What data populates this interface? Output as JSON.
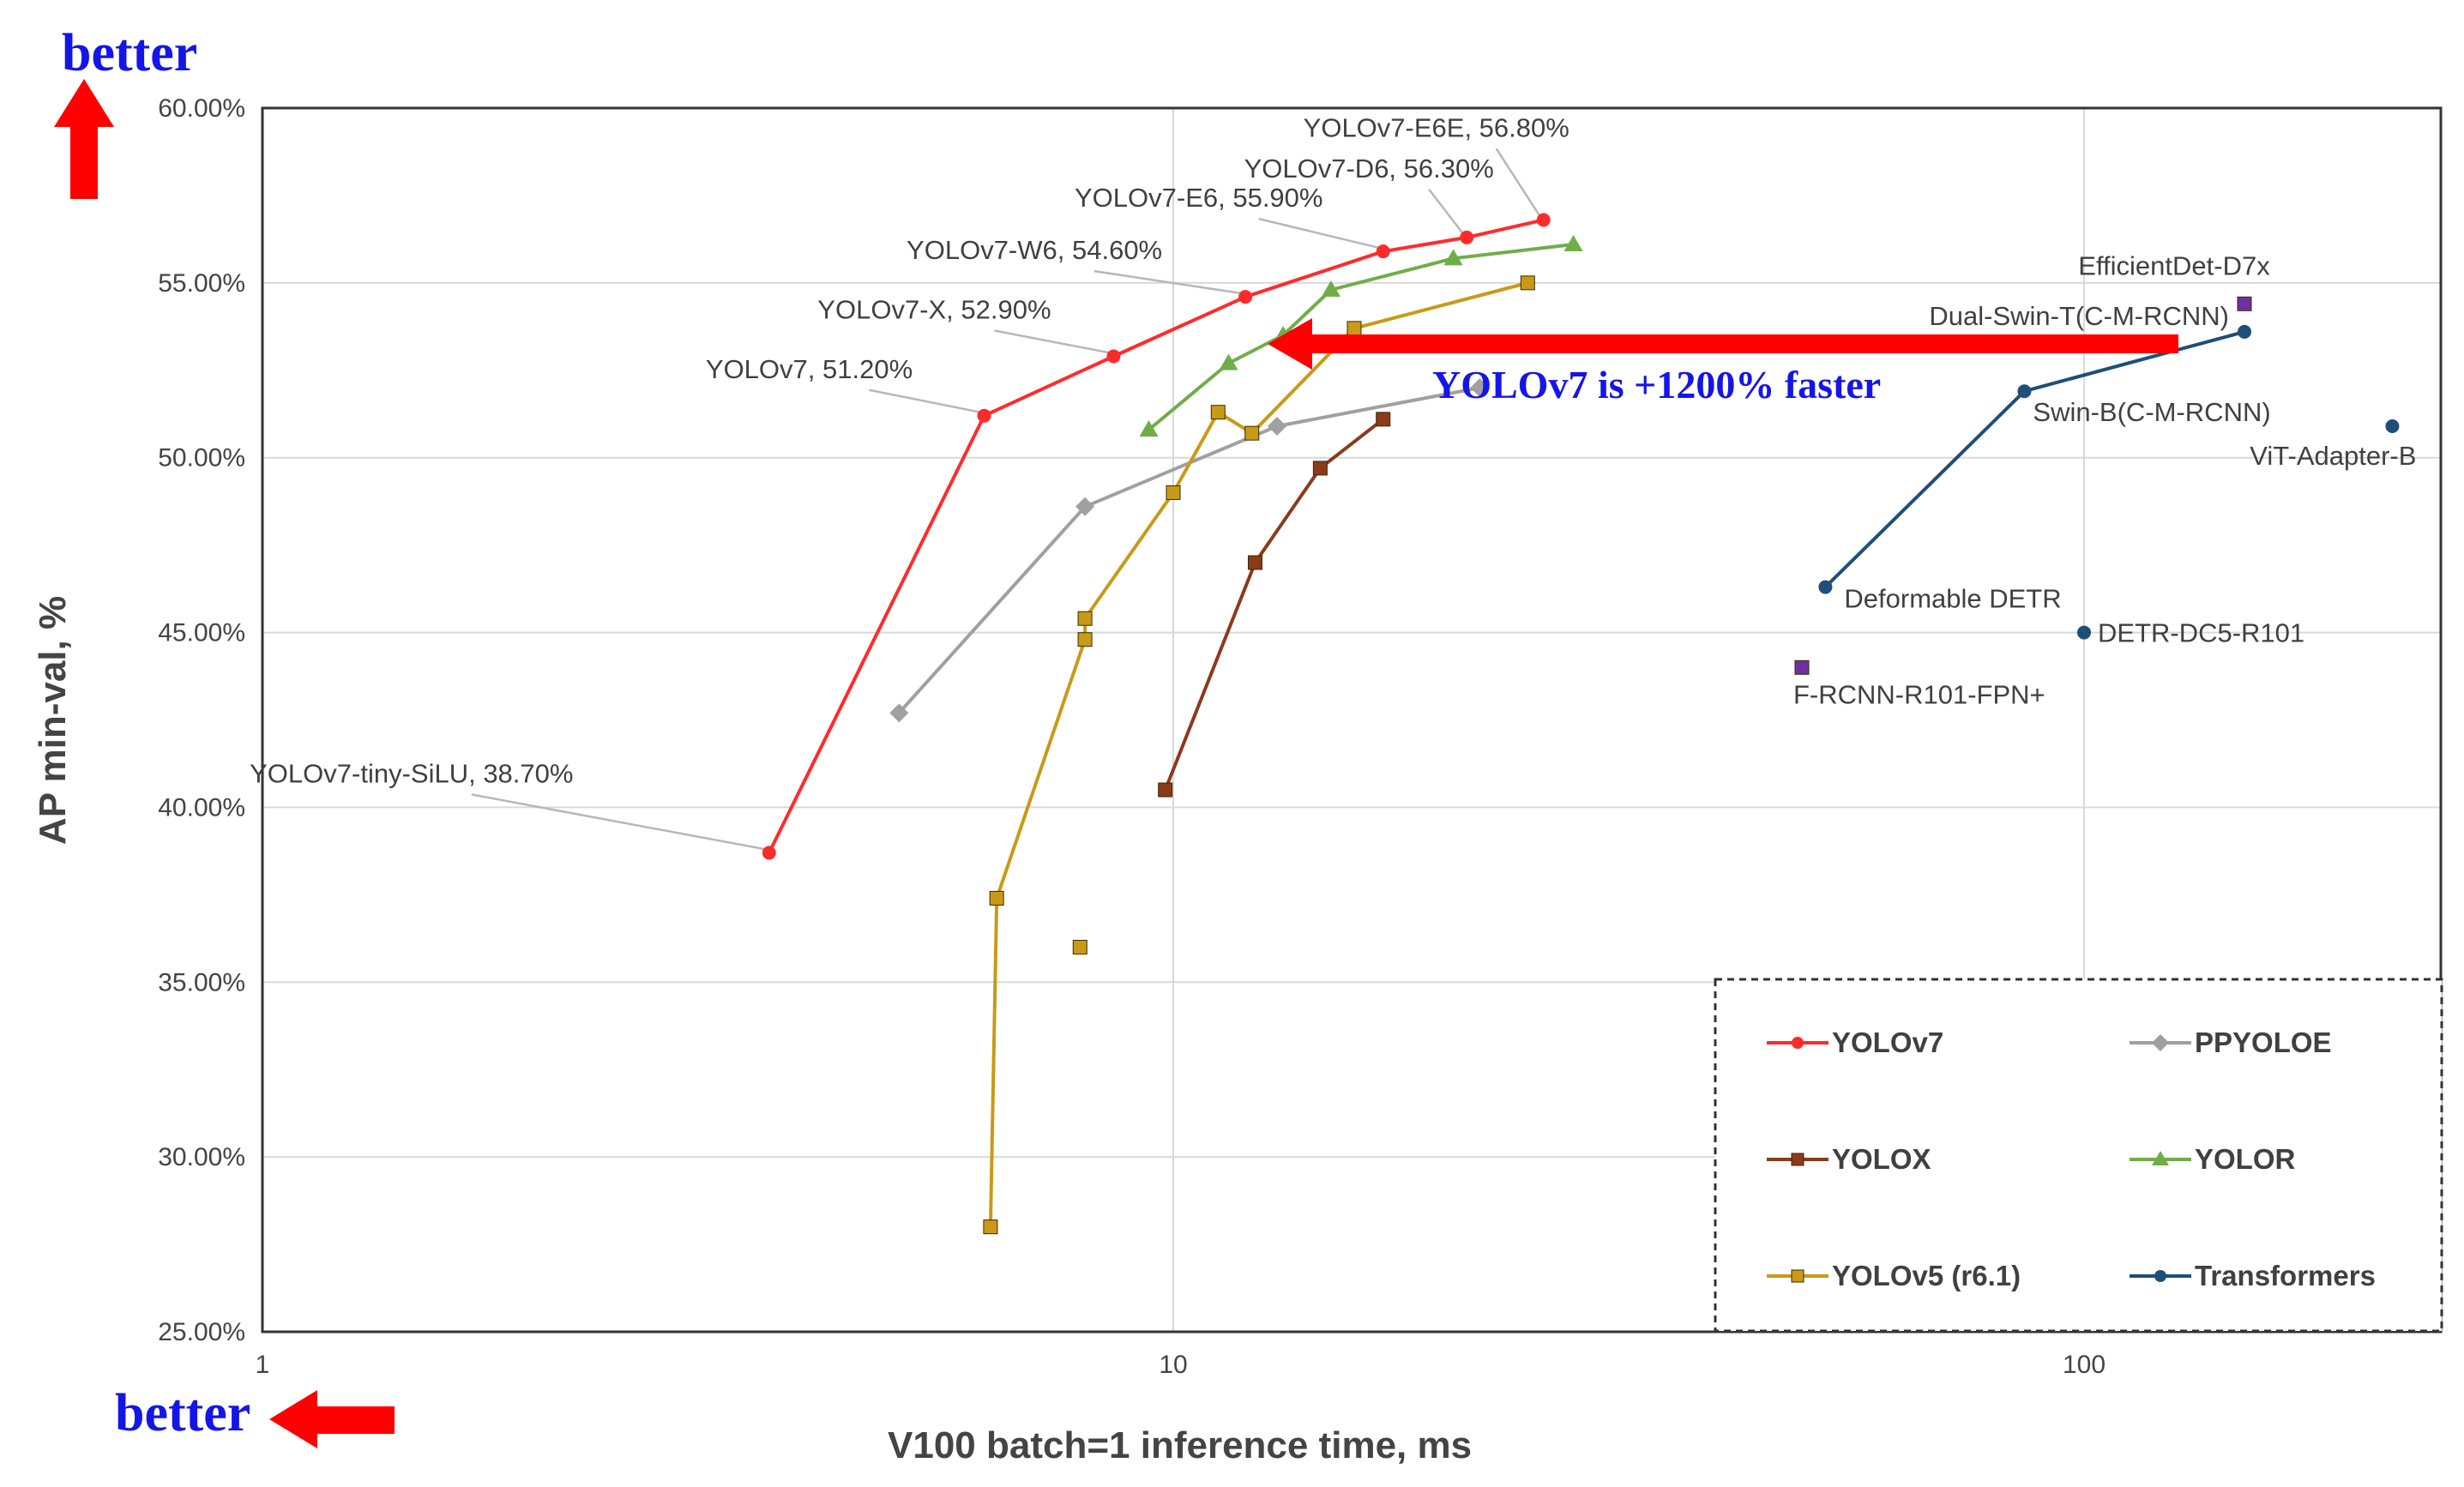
{
  "chart_data": {
    "type": "scatter",
    "title": "",
    "xlabel": "V100 batch=1 inference time, ms",
    "ylabel": "AP min-val, %",
    "xscale": "log",
    "xlim": [
      1,
      230
    ],
    "ylim": [
      25,
      60
    ],
    "xticks": [
      "1",
      "10",
      "100"
    ],
    "yticks": [
      "25.00%",
      "30.00%",
      "35.00%",
      "40.00%",
      "45.00%",
      "50.00%",
      "55.00%",
      "60.00%"
    ],
    "grid": true,
    "legend_position": "bottom-right",
    "better_y": "better",
    "better_x": "better",
    "speedup_note": "YOLOv7 is +1200% faster",
    "series": [
      {
        "name": "YOLOv7",
        "color": "#ff2b2b",
        "marker": "circle",
        "lines": true,
        "x": [
          3.6,
          6.2,
          8.6,
          12.0,
          17.0,
          21.0,
          25.5
        ],
        "y": [
          38.7,
          51.2,
          52.9,
          54.6,
          55.9,
          56.3,
          56.8
        ]
      },
      {
        "name": "PPYOLOE",
        "color": "#a0a0a0",
        "marker": "diamond",
        "lines": true,
        "x": [
          5.0,
          8.0,
          13.0,
          21.7
        ],
        "y": [
          42.7,
          48.6,
          50.9,
          52.0
        ]
      },
      {
        "name": "YOLOX",
        "color": "#8b3a1a",
        "marker": "square",
        "lines": true,
        "x": [
          9.8,
          12.3,
          14.5,
          17.0
        ],
        "y": [
          40.5,
          47.0,
          49.7,
          51.1
        ]
      },
      {
        "name": "YOLOR",
        "color": "#70ad47",
        "marker": "triangle",
        "lines": true,
        "x": [
          9.4,
          11.5,
          13.2,
          14.9,
          20.3,
          27.5
        ],
        "y": [
          50.8,
          52.7,
          53.5,
          54.8,
          55.7,
          56.1
        ]
      },
      {
        "name": "YOLOv5 (r6.1)",
        "color": "#c99a17",
        "marker": "square",
        "lines": true,
        "x": [
          6.3,
          6.4,
          8.0,
          8.0,
          10.0,
          11.2,
          12.2,
          15.8,
          24.5
        ],
        "y": [
          28.0,
          37.4,
          44.8,
          45.4,
          49.0,
          51.3,
          50.7,
          53.7,
          55.0
        ]
      },
      {
        "name": "YOLOv5 (r6.1)",
        "color": "#c99a17",
        "marker": "square",
        "lines": false,
        "x": [
          7.9
        ],
        "y": [
          36.0
        ]
      },
      {
        "name": "Transformers",
        "color": "#1f4e79",
        "marker": "circle",
        "lines": true,
        "x": [
          52.0,
          86.0,
          150.0
        ],
        "y": [
          46.3,
          51.9,
          53.6
        ]
      },
      {
        "name": "Transformers",
        "color": "#1f4e79",
        "marker": "circle",
        "lines": false,
        "x": [
          100.0,
          218.0
        ],
        "y": [
          45.0,
          50.9
        ]
      },
      {
        "name": "",
        "color": "#7030a0",
        "marker": "square",
        "lines": false,
        "x": [
          49.0,
          150.0
        ],
        "y": [
          44.0,
          54.4
        ]
      }
    ],
    "annotations": [
      {
        "text": "YOLOv7-E6E, 56.80%",
        "x": 25.5,
        "y": 56.8
      },
      {
        "text": "YOLOv7-D6, 56.30%",
        "x": 21.0,
        "y": 56.3
      },
      {
        "text": "YOLOv7-E6, 55.90%",
        "x": 17.0,
        "y": 55.9
      },
      {
        "text": "YOLOv7-W6, 54.60%",
        "x": 12.0,
        "y": 54.6
      },
      {
        "text": "YOLOv7-X, 52.90%",
        "x": 8.6,
        "y": 52.9
      },
      {
        "text": "YOLOv7, 51.20%",
        "x": 6.2,
        "y": 51.2
      },
      {
        "text": "YOLOv7-tiny-SiLU, 38.70%",
        "x": 3.6,
        "y": 38.7
      },
      {
        "text": "EfficientDet-D7x",
        "x": 150.0,
        "y": 54.4
      },
      {
        "text": "Dual-Swin-T(C-M-RCNN)",
        "x": 150.0,
        "y": 53.6
      },
      {
        "text": "Swin-B(C-M-RCNN)",
        "x": 86.0,
        "y": 51.9
      },
      {
        "text": "ViT-Adapter-B",
        "x": 218.0,
        "y": 50.9
      },
      {
        "text": "Deformable DETR",
        "x": 52.0,
        "y": 46.3
      },
      {
        "text": "DETR-DC5-R101",
        "x": 100.0,
        "y": 45.0
      },
      {
        "text": "F-RCNN-R101-FPN+",
        "x": 49.0,
        "y": 44.0
      }
    ]
  }
}
